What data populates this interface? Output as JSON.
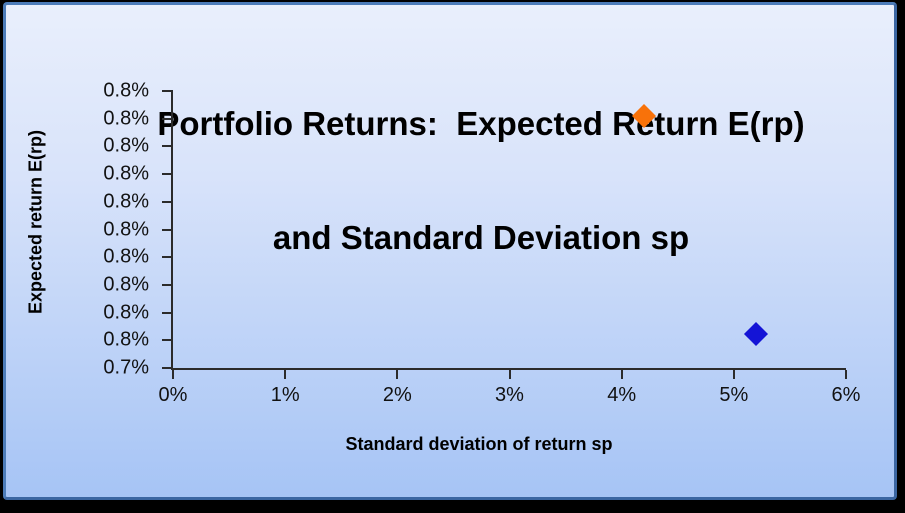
{
  "chart": {
    "title_line1": "Portfolio Returns:  Expected Return E(rp)",
    "title_line2": "and Standard Deviation sp",
    "x_axis_label": "Standard deviation of return sp",
    "y_axis_label": "Expected return E(rp)"
  },
  "chart_data": {
    "type": "scatter",
    "title": "Portfolio Returns:  Expected Return E(rp) and Standard Deviation sp",
    "xlabel": "Standard deviation of return sp",
    "ylabel": "Expected return E(rp)",
    "x_ticks": [
      "0%",
      "1%",
      "2%",
      "3%",
      "4%",
      "5%",
      "6%"
    ],
    "y_ticks_top_to_bottom": [
      "0.8%",
      "0.8%",
      "0.8%",
      "0.8%",
      "0.8%",
      "0.8%",
      "0.8%",
      "0.8%",
      "0.8%",
      "0.8%",
      "0.7%"
    ],
    "x_range_pct": [
      0,
      6
    ],
    "y_axis_note": "labels rounded to one decimal; approx range 0.745% (bottom) to 0.795% (top)",
    "grid": false,
    "legend": "none",
    "points": [
      {
        "name": "portfolio-point-orange",
        "x_pct": 4.2,
        "y_pct_est": 0.79,
        "y_fraction_from_top": 0.09,
        "color": "#F8720A"
      },
      {
        "name": "portfolio-point-blue",
        "x_pct": 5.2,
        "y_pct_est": 0.75,
        "y_fraction_from_top": 0.877,
        "color": "#1414D6"
      }
    ]
  },
  "colors": {
    "frame": "#000000",
    "panel_border": "#4C7CB9",
    "panel_gradient_top": "#E9EFFC",
    "panel_gradient_bottom": "#A6C4F5",
    "axis_line": "#2B2B2B",
    "text": "#000000",
    "point_orange": "#F8720A",
    "point_blue": "#1414D6"
  }
}
